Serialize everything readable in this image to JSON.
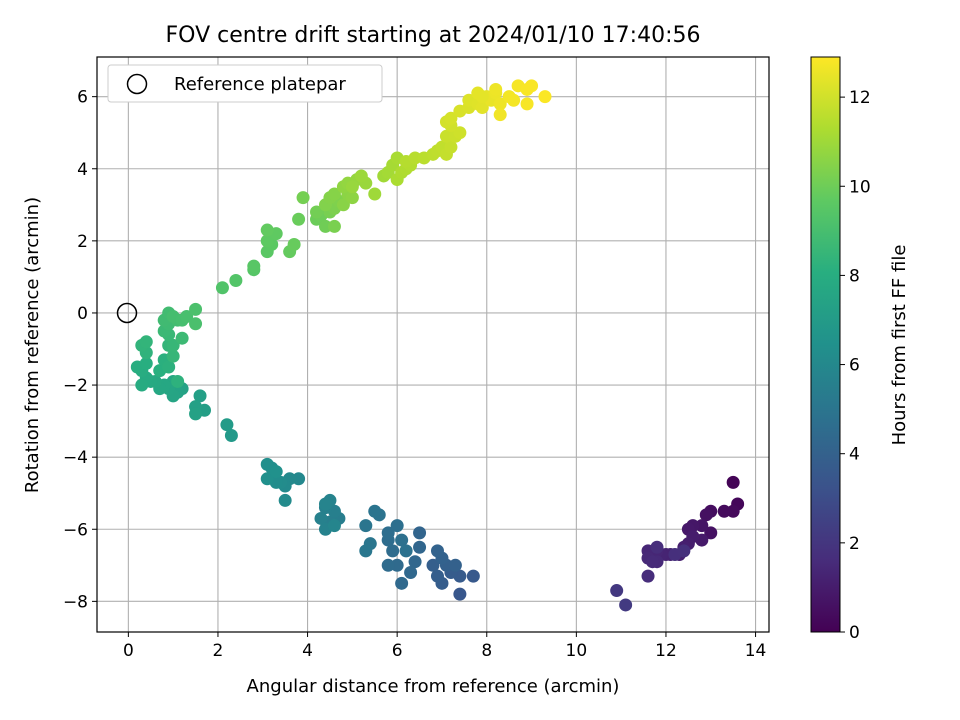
{
  "chart_data": {
    "type": "scatter",
    "title": "FOV centre drift starting at 2024/01/10 17:40:56",
    "xlabel": "Angular distance from reference (arcmin)",
    "ylabel": "Rotation from reference (arcmin)",
    "xlim": [
      -0.7,
      14.3
    ],
    "ylim": [
      -8.85,
      7.1
    ],
    "x_ticks": [
      "0",
      "2",
      "4",
      "6",
      "8",
      "10",
      "12",
      "14"
    ],
    "y_ticks": [
      "−8",
      "−6",
      "−4",
      "−2",
      "0",
      "2",
      "4",
      "6"
    ],
    "grid": true,
    "legend": {
      "position": "top-left",
      "entries": [
        "Reference platepar"
      ]
    },
    "reference_point": {
      "x": 0,
      "y": 0
    },
    "colorbar": {
      "label": "Hours from first FF file",
      "range": [
        0,
        12.9
      ],
      "ticks": [
        "0",
        "2",
        "4",
        "6",
        "8",
        "10",
        "12"
      ],
      "colormap": "viridis"
    },
    "points": [
      {
        "x": 13.5,
        "y": -4.7,
        "h": 0.1
      },
      {
        "x": 13.6,
        "y": -5.3,
        "h": 0.2
      },
      {
        "x": 13.5,
        "y": -5.5,
        "h": 0.3
      },
      {
        "x": 13.3,
        "y": -5.5,
        "h": 0.35
      },
      {
        "x": 13.0,
        "y": -5.5,
        "h": 0.45
      },
      {
        "x": 12.9,
        "y": -5.6,
        "h": 0.55
      },
      {
        "x": 13.0,
        "y": -6.1,
        "h": 0.6
      },
      {
        "x": 12.8,
        "y": -5.9,
        "h": 0.7
      },
      {
        "x": 12.6,
        "y": -5.9,
        "h": 0.8
      },
      {
        "x": 12.5,
        "y": -6.0,
        "h": 0.85
      },
      {
        "x": 12.8,
        "y": -6.3,
        "h": 0.9
      },
      {
        "x": 12.6,
        "y": -6.2,
        "h": 1.0
      },
      {
        "x": 12.5,
        "y": -6.4,
        "h": 1.05
      },
      {
        "x": 12.4,
        "y": -6.5,
        "h": 1.1
      },
      {
        "x": 12.3,
        "y": -6.7,
        "h": 1.15
      },
      {
        "x": 12.0,
        "y": -6.7,
        "h": 1.2
      },
      {
        "x": 12.1,
        "y": -6.7,
        "h": 1.25
      },
      {
        "x": 11.9,
        "y": -6.7,
        "h": 1.3
      },
      {
        "x": 11.8,
        "y": -6.6,
        "h": 1.35
      },
      {
        "x": 11.6,
        "y": -6.6,
        "h": 1.4
      },
      {
        "x": 11.6,
        "y": -6.8,
        "h": 1.45
      },
      {
        "x": 11.8,
        "y": -6.9,
        "h": 1.5
      },
      {
        "x": 11.7,
        "y": -6.9,
        "h": 1.55
      },
      {
        "x": 11.6,
        "y": -7.3,
        "h": 1.6
      },
      {
        "x": 11.8,
        "y": -6.5,
        "h": 1.65
      },
      {
        "x": 12.2,
        "y": -6.7,
        "h": 1.7
      },
      {
        "x": 12.4,
        "y": -6.6,
        "h": 1.75
      },
      {
        "x": 10.9,
        "y": -7.7,
        "h": 2.1
      },
      {
        "x": 11.1,
        "y": -8.1,
        "h": 2.2
      },
      {
        "x": 7.4,
        "y": -7.8,
        "h": 3.5
      },
      {
        "x": 7.7,
        "y": -7.3,
        "h": 3.6
      },
      {
        "x": 7.4,
        "y": -7.3,
        "h": 3.7
      },
      {
        "x": 7.2,
        "y": -7.2,
        "h": 3.75
      },
      {
        "x": 7.0,
        "y": -7.5,
        "h": 3.8
      },
      {
        "x": 6.9,
        "y": -7.3,
        "h": 3.85
      },
      {
        "x": 6.8,
        "y": -7.0,
        "h": 3.9
      },
      {
        "x": 7.1,
        "y": -7.0,
        "h": 3.95
      },
      {
        "x": 7.3,
        "y": -7.0,
        "h": 4.0
      },
      {
        "x": 7.0,
        "y": -6.8,
        "h": 4.05
      },
      {
        "x": 6.9,
        "y": -6.6,
        "h": 4.1
      },
      {
        "x": 6.5,
        "y": -6.1,
        "h": 4.2
      },
      {
        "x": 6.5,
        "y": -6.5,
        "h": 4.25
      },
      {
        "x": 6.4,
        "y": -6.9,
        "h": 4.3
      },
      {
        "x": 6.3,
        "y": -7.2,
        "h": 4.35
      },
      {
        "x": 6.1,
        "y": -7.5,
        "h": 4.4
      },
      {
        "x": 6.0,
        "y": -7.0,
        "h": 4.45
      },
      {
        "x": 5.8,
        "y": -7.0,
        "h": 4.5
      },
      {
        "x": 5.9,
        "y": -6.6,
        "h": 4.55
      },
      {
        "x": 5.8,
        "y": -6.3,
        "h": 4.6
      },
      {
        "x": 5.8,
        "y": -6.1,
        "h": 4.65
      },
      {
        "x": 6.0,
        "y": -5.9,
        "h": 4.7
      },
      {
        "x": 6.1,
        "y": -6.3,
        "h": 4.75
      },
      {
        "x": 6.2,
        "y": -6.6,
        "h": 4.8
      },
      {
        "x": 5.6,
        "y": -5.6,
        "h": 4.9
      },
      {
        "x": 5.5,
        "y": -5.5,
        "h": 4.95
      },
      {
        "x": 5.3,
        "y": -5.9,
        "h": 5.0
      },
      {
        "x": 5.4,
        "y": -6.4,
        "h": 5.05
      },
      {
        "x": 5.3,
        "y": -6.6,
        "h": 5.1
      },
      {
        "x": 4.7,
        "y": -5.7,
        "h": 5.4
      },
      {
        "x": 4.5,
        "y": -5.8,
        "h": 5.45
      },
      {
        "x": 4.6,
        "y": -5.5,
        "h": 5.5
      },
      {
        "x": 4.4,
        "y": -5.4,
        "h": 5.55
      },
      {
        "x": 4.3,
        "y": -5.7,
        "h": 5.6
      },
      {
        "x": 4.4,
        "y": -6.0,
        "h": 5.65
      },
      {
        "x": 4.5,
        "y": -5.2,
        "h": 5.7
      },
      {
        "x": 4.4,
        "y": -5.3,
        "h": 5.75
      },
      {
        "x": 4.6,
        "y": -5.9,
        "h": 5.8
      },
      {
        "x": 3.8,
        "y": -4.6,
        "h": 6.0
      },
      {
        "x": 3.6,
        "y": -4.6,
        "h": 6.05
      },
      {
        "x": 3.5,
        "y": -4.8,
        "h": 6.1
      },
      {
        "x": 3.5,
        "y": -5.2,
        "h": 6.15
      },
      {
        "x": 3.4,
        "y": -4.7,
        "h": 6.2
      },
      {
        "x": 3.3,
        "y": -4.7,
        "h": 6.25
      },
      {
        "x": 3.2,
        "y": -4.3,
        "h": 6.3
      },
      {
        "x": 3.1,
        "y": -4.2,
        "h": 6.35
      },
      {
        "x": 3.1,
        "y": -4.6,
        "h": 6.4
      },
      {
        "x": 3.3,
        "y": -4.4,
        "h": 6.45
      },
      {
        "x": 2.3,
        "y": -3.4,
        "h": 6.9
      },
      {
        "x": 2.2,
        "y": -3.1,
        "h": 7.0
      },
      {
        "x": 1.7,
        "y": -2.7,
        "h": 7.2
      },
      {
        "x": 1.6,
        "y": -2.3,
        "h": 7.25
      },
      {
        "x": 1.5,
        "y": -2.6,
        "h": 7.3
      },
      {
        "x": 1.5,
        "y": -2.8,
        "h": 7.35
      },
      {
        "x": 1.2,
        "y": -2.1,
        "h": 7.4
      },
      {
        "x": 1.1,
        "y": -2.2,
        "h": 7.45
      },
      {
        "x": 1.0,
        "y": -2.3,
        "h": 7.5
      },
      {
        "x": 0.9,
        "y": -2.1,
        "h": 7.55
      },
      {
        "x": 1.0,
        "y": -1.9,
        "h": 7.6
      },
      {
        "x": 0.8,
        "y": -2.0,
        "h": 7.65
      },
      {
        "x": 0.7,
        "y": -2.1,
        "h": 7.7
      },
      {
        "x": 0.6,
        "y": -1.9,
        "h": 7.75
      },
      {
        "x": 0.5,
        "y": -1.9,
        "h": 7.8
      },
      {
        "x": 0.4,
        "y": -1.8,
        "h": 7.85
      },
      {
        "x": 0.3,
        "y": -2.0,
        "h": 7.9
      },
      {
        "x": 0.3,
        "y": -1.6,
        "h": 7.95
      },
      {
        "x": 0.2,
        "y": -1.5,
        "h": 8.0
      },
      {
        "x": 0.4,
        "y": -1.4,
        "h": 8.05
      },
      {
        "x": 0.7,
        "y": -1.6,
        "h": 8.1
      },
      {
        "x": 0.8,
        "y": -1.3,
        "h": 8.15
      },
      {
        "x": 0.9,
        "y": -1.5,
        "h": 8.2
      },
      {
        "x": 1.1,
        "y": -1.9,
        "h": 8.25
      },
      {
        "x": 0.4,
        "y": -1.1,
        "h": 8.3
      },
      {
        "x": 0.3,
        "y": -0.9,
        "h": 8.35
      },
      {
        "x": 0.4,
        "y": -0.8,
        "h": 8.4
      },
      {
        "x": 0.9,
        "y": -0.9,
        "h": 8.45
      },
      {
        "x": 1.0,
        "y": -1.2,
        "h": 8.5
      },
      {
        "x": 1.0,
        "y": -0.9,
        "h": 8.55
      },
      {
        "x": 0.9,
        "y": -0.6,
        "h": 8.6
      },
      {
        "x": 0.8,
        "y": -0.5,
        "h": 8.65
      },
      {
        "x": 1.2,
        "y": -0.7,
        "h": 8.7
      },
      {
        "x": 0.9,
        "y": -0.3,
        "h": 8.75
      },
      {
        "x": 0.8,
        "y": -0.2,
        "h": 8.8
      },
      {
        "x": 0.9,
        "y": 0.0,
        "h": 8.85
      },
      {
        "x": 1.1,
        "y": -0.2,
        "h": 8.9
      },
      {
        "x": 1.0,
        "y": -0.1,
        "h": 8.95
      },
      {
        "x": 1.2,
        "y": -0.2,
        "h": 9.0
      },
      {
        "x": 1.3,
        "y": -0.1,
        "h": 9.05
      },
      {
        "x": 1.5,
        "y": -0.3,
        "h": 9.1
      },
      {
        "x": 1.5,
        "y": 0.1,
        "h": 9.15
      },
      {
        "x": 2.1,
        "y": 0.7,
        "h": 9.3
      },
      {
        "x": 2.4,
        "y": 0.9,
        "h": 9.35
      },
      {
        "x": 2.8,
        "y": 1.2,
        "h": 9.45
      },
      {
        "x": 2.8,
        "y": 1.3,
        "h": 9.5
      },
      {
        "x": 3.1,
        "y": 1.7,
        "h": 9.55
      },
      {
        "x": 3.2,
        "y": 1.9,
        "h": 9.6
      },
      {
        "x": 3.1,
        "y": 2.0,
        "h": 9.65
      },
      {
        "x": 3.3,
        "y": 2.2,
        "h": 9.7
      },
      {
        "x": 3.1,
        "y": 2.3,
        "h": 9.75
      },
      {
        "x": 3.6,
        "y": 1.7,
        "h": 9.8
      },
      {
        "x": 3.7,
        "y": 1.9,
        "h": 9.85
      },
      {
        "x": 3.8,
        "y": 2.6,
        "h": 9.9
      },
      {
        "x": 4.2,
        "y": 2.6,
        "h": 9.95
      },
      {
        "x": 4.3,
        "y": 2.7,
        "h": 10.0
      },
      {
        "x": 4.4,
        "y": 2.4,
        "h": 10.05
      },
      {
        "x": 4.2,
        "y": 2.8,
        "h": 10.1
      },
      {
        "x": 3.9,
        "y": 3.2,
        "h": 10.15
      },
      {
        "x": 4.5,
        "y": 2.8,
        "h": 10.2
      },
      {
        "x": 4.6,
        "y": 2.4,
        "h": 10.25
      },
      {
        "x": 4.6,
        "y": 2.9,
        "h": 10.3
      },
      {
        "x": 4.7,
        "y": 3.1,
        "h": 10.35
      },
      {
        "x": 4.4,
        "y": 3.0,
        "h": 10.4
      },
      {
        "x": 4.5,
        "y": 3.2,
        "h": 10.45
      },
      {
        "x": 4.6,
        "y": 3.3,
        "h": 10.5
      },
      {
        "x": 4.8,
        "y": 3.0,
        "h": 10.55
      },
      {
        "x": 4.9,
        "y": 3.3,
        "h": 10.6
      },
      {
        "x": 5.0,
        "y": 3.2,
        "h": 10.65
      },
      {
        "x": 4.8,
        "y": 3.5,
        "h": 10.7
      },
      {
        "x": 4.9,
        "y": 3.6,
        "h": 10.75
      },
      {
        "x": 5.1,
        "y": 3.7,
        "h": 10.8
      },
      {
        "x": 5.0,
        "y": 3.5,
        "h": 10.85
      },
      {
        "x": 5.3,
        "y": 3.6,
        "h": 10.9
      },
      {
        "x": 5.2,
        "y": 3.8,
        "h": 10.95
      },
      {
        "x": 5.5,
        "y": 3.3,
        "h": 11.0
      },
      {
        "x": 5.7,
        "y": 3.8,
        "h": 11.05
      },
      {
        "x": 5.8,
        "y": 3.9,
        "h": 11.1
      },
      {
        "x": 5.9,
        "y": 4.1,
        "h": 11.15
      },
      {
        "x": 6.0,
        "y": 4.3,
        "h": 11.2
      },
      {
        "x": 6.0,
        "y": 3.7,
        "h": 11.25
      },
      {
        "x": 6.1,
        "y": 3.9,
        "h": 11.3
      },
      {
        "x": 6.2,
        "y": 4.0,
        "h": 11.35
      },
      {
        "x": 6.3,
        "y": 4.1,
        "h": 11.4
      },
      {
        "x": 6.2,
        "y": 4.2,
        "h": 11.45
      },
      {
        "x": 6.4,
        "y": 4.3,
        "h": 11.5
      },
      {
        "x": 6.6,
        "y": 4.3,
        "h": 11.55
      },
      {
        "x": 6.8,
        "y": 4.4,
        "h": 11.6
      },
      {
        "x": 6.9,
        "y": 4.5,
        "h": 11.65
      },
      {
        "x": 7.0,
        "y": 4.6,
        "h": 11.7
      },
      {
        "x": 7.1,
        "y": 4.4,
        "h": 11.75
      },
      {
        "x": 7.2,
        "y": 4.6,
        "h": 11.8
      },
      {
        "x": 7.1,
        "y": 4.9,
        "h": 11.85
      },
      {
        "x": 7.3,
        "y": 4.9,
        "h": 11.9
      },
      {
        "x": 7.4,
        "y": 5.0,
        "h": 11.95
      },
      {
        "x": 7.2,
        "y": 5.2,
        "h": 12.0
      },
      {
        "x": 7.1,
        "y": 5.3,
        "h": 12.05
      },
      {
        "x": 7.2,
        "y": 5.4,
        "h": 12.1
      },
      {
        "x": 7.4,
        "y": 5.6,
        "h": 12.15
      },
      {
        "x": 7.6,
        "y": 5.7,
        "h": 12.2
      },
      {
        "x": 7.6,
        "y": 5.9,
        "h": 12.25
      },
      {
        "x": 7.8,
        "y": 5.8,
        "h": 12.3
      },
      {
        "x": 7.9,
        "y": 5.7,
        "h": 12.35
      },
      {
        "x": 7.8,
        "y": 6.1,
        "h": 12.4
      },
      {
        "x": 8.0,
        "y": 6.0,
        "h": 12.45
      },
      {
        "x": 8.1,
        "y": 5.9,
        "h": 12.5
      },
      {
        "x": 8.2,
        "y": 6.1,
        "h": 12.55
      },
      {
        "x": 8.3,
        "y": 5.8,
        "h": 12.6
      },
      {
        "x": 8.3,
        "y": 5.5,
        "h": 12.65
      },
      {
        "x": 8.5,
        "y": 6.0,
        "h": 12.7
      },
      {
        "x": 8.6,
        "y": 5.9,
        "h": 12.72
      },
      {
        "x": 8.7,
        "y": 6.3,
        "h": 12.75
      },
      {
        "x": 8.9,
        "y": 5.8,
        "h": 12.78
      },
      {
        "x": 8.9,
        "y": 6.2,
        "h": 12.8
      },
      {
        "x": 9.0,
        "y": 6.3,
        "h": 12.82
      },
      {
        "x": 9.3,
        "y": 6.0,
        "h": 12.85
      },
      {
        "x": 8.2,
        "y": 6.2,
        "h": 12.6
      },
      {
        "x": 7.9,
        "y": 6.0,
        "h": 12.4
      }
    ]
  }
}
